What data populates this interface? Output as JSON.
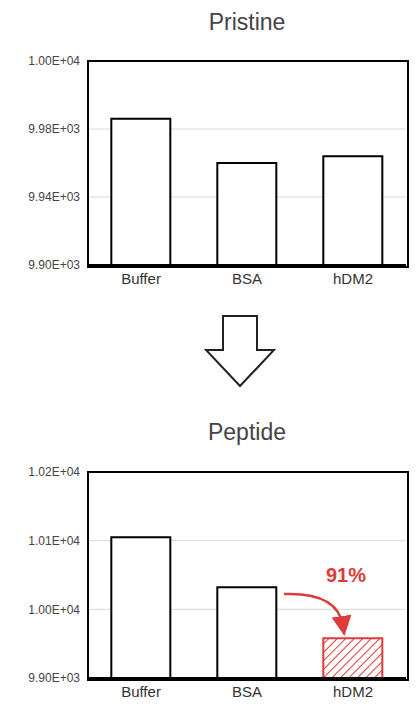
{
  "chart_data": [
    {
      "type": "bar",
      "title": "Pristine",
      "categories": [
        "Buffer",
        "BSA",
        "hDM2"
      ],
      "values": [
        9986,
        9960,
        9964
      ],
      "colors": [
        "#ffffff",
        "#ffffff",
        "#ffffff"
      ],
      "ylim": [
        9900,
        10020
      ],
      "yticks": [
        {
          "value": 9900,
          "label": "9.90E+03"
        },
        {
          "value": 9940,
          "label": "9.94E+03"
        },
        {
          "value": 9980,
          "label": "9.98E+03"
        },
        {
          "value": 10020,
          "label": "1.00E+04"
        }
      ],
      "grid": true
    },
    {
      "type": "bar",
      "title": "Peptide",
      "categories": [
        "Buffer",
        "BSA",
        "hDM2"
      ],
      "values": [
        10105,
        10032,
        9958
      ],
      "colors": [
        "#ffffff",
        "#ffffff",
        "#e03a3a"
      ],
      "ylim": [
        9900,
        10200
      ],
      "yticks": [
        {
          "value": 9900,
          "label": "9.90E+03"
        },
        {
          "value": 10000,
          "label": "1.00E+04"
        },
        {
          "value": 10100,
          "label": "1.01E+04"
        },
        {
          "value": 10200,
          "label": "1.02E+04"
        }
      ],
      "grid": true,
      "annotation": "91%"
    }
  ]
}
